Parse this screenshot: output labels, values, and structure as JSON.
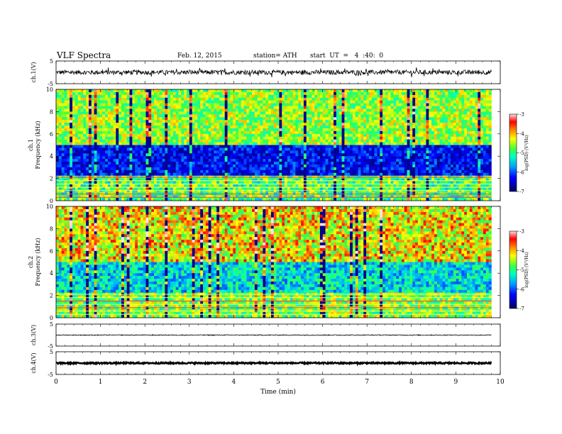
{
  "header": {
    "title": "VLF Spectra",
    "date": "Feb. 12, 2015",
    "station": "station= ATH",
    "start": "start  UT  =   4  :40:  0"
  },
  "chart_data": [
    {
      "type": "line",
      "name": "ch1_waveform",
      "ylabel": "ch.1(V)",
      "ylim": [
        -5,
        5
      ],
      "yticks": [
        "5",
        "-5"
      ],
      "xlim": [
        0,
        10
      ],
      "data_end_min": 9.8,
      "baseline": 0,
      "amplitude_approx": 1
    },
    {
      "type": "heatmap",
      "name": "ch1_spectrogram",
      "ylabel": "ch.1\nFrequency (kHz)",
      "ylim": [
        0,
        10
      ],
      "yticks": [
        "0",
        "2",
        "4",
        "6",
        "8",
        "10"
      ],
      "xlim": [
        0,
        10
      ],
      "data_end_min": 9.8,
      "colorbar": {
        "label": "log(PSD) (V²/Hz)",
        "range": [
          -7,
          -3
        ],
        "ticks": [
          "-3",
          "-4",
          "-5",
          "-6",
          "-7"
        ]
      }
    },
    {
      "type": "heatmap",
      "name": "ch2_spectrogram",
      "ylabel": "ch.2\nFrequency (kHz)",
      "ylim": [
        0,
        10
      ],
      "yticks": [
        "0",
        "2",
        "4",
        "6",
        "8",
        "10"
      ],
      "xlim": [
        0,
        10
      ],
      "data_end_min": 9.8,
      "colorbar": {
        "label": "log(PSD) (V²/Hz)",
        "range": [
          -7,
          -3
        ],
        "ticks": [
          "-3",
          "-4",
          "-5",
          "-6",
          "-7"
        ]
      }
    },
    {
      "type": "line",
      "name": "ch3_waveform",
      "ylabel": "ch.3(V)",
      "ylim": [
        -5,
        5
      ],
      "yticks": [
        "5",
        "-5"
      ],
      "xlim": [
        0,
        10
      ],
      "data_end_min": 9.8,
      "baseline": 0,
      "amplitude_approx": 0.2
    },
    {
      "type": "line",
      "name": "ch4_waveform",
      "ylabel": "ch.4(V)",
      "ylim": [
        -5,
        5
      ],
      "yticks": [
        "5",
        "-5"
      ],
      "xlim": [
        0,
        10
      ],
      "data_end_min": 9.8,
      "baseline": 0,
      "amplitude_approx": 0.3,
      "xlabel": "Time (min)",
      "xticks": [
        "0",
        "1",
        "2",
        "3",
        "4",
        "5",
        "6",
        "7",
        "8",
        "9",
        "10"
      ]
    }
  ]
}
